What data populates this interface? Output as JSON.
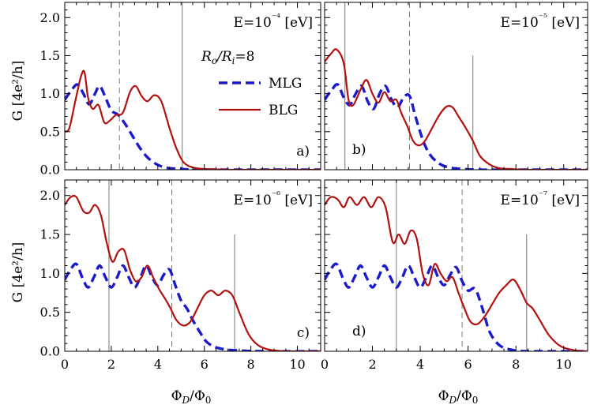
{
  "figure": {
    "ylabel_top": "G [4e²/h]",
    "ylabel_bottom": "G [4e²/h]",
    "xlabel_left": "Φ_D/Φ_0",
    "xlabel_right": "Φ_D/Φ_0",
    "ratio_label": "R_o/R_i=8",
    "colors": {
      "MLG": "#1a1acc",
      "BLG": "#b31010",
      "vline": "#777777",
      "axis": "#000000"
    }
  },
  "chart_data": [
    {
      "type": "line",
      "panel": "a)",
      "energy_label": "E=10⁻⁴ [eV]",
      "xlim": [
        0,
        11
      ],
      "ylim": [
        0,
        2.2
      ],
      "xticks": [
        "0",
        "2",
        "4",
        "6",
        "8",
        "10"
      ],
      "yticks": [
        "0.0",
        "0.5",
        "1.0",
        "1.5",
        "2.0"
      ],
      "legend": [
        "MLG",
        "BLG"
      ],
      "vlines": {
        "dashed": [
          2.35
        ],
        "solid": [
          5.05
        ]
      },
      "series": [
        {
          "name": "MLG",
          "x": [
            0.0,
            0.3,
            0.55,
            0.8,
            1.05,
            1.3,
            1.5,
            1.75,
            2.0,
            2.3,
            2.6,
            2.9,
            3.2,
            3.5,
            3.8,
            4.1,
            4.5,
            5.0,
            5.5,
            6.5,
            8.0,
            11.0
          ],
          "y": [
            0.92,
            1.05,
            1.12,
            1.0,
            0.86,
            1.0,
            1.1,
            0.95,
            0.78,
            0.72,
            0.6,
            0.45,
            0.3,
            0.18,
            0.1,
            0.05,
            0.02,
            0.01,
            0.0,
            0.0,
            0.0,
            0.0
          ]
        },
        {
          "name": "BLG",
          "x": [
            0.0,
            0.2,
            0.45,
            0.7,
            0.85,
            1.0,
            1.2,
            1.45,
            1.7,
            1.95,
            2.2,
            2.5,
            2.8,
            3.05,
            3.3,
            3.55,
            3.85,
            4.15,
            4.5,
            4.8,
            5.1,
            5.5,
            6.0,
            7.0,
            8.0,
            11.0
          ],
          "y": [
            0.5,
            0.55,
            0.9,
            1.23,
            1.28,
            0.95,
            0.8,
            0.85,
            0.62,
            0.65,
            0.72,
            0.75,
            1.02,
            1.1,
            0.97,
            0.9,
            0.98,
            0.9,
            0.55,
            0.28,
            0.1,
            0.03,
            0.01,
            0.0,
            0.0,
            0.0
          ]
        }
      ]
    },
    {
      "type": "line",
      "panel": "b)",
      "energy_label": "E=10⁻⁵ [eV]",
      "xlim": [
        0,
        11
      ],
      "ylim": [
        0,
        2.2
      ],
      "xticks": [
        "0",
        "2",
        "4",
        "6",
        "8",
        "10"
      ],
      "yticks": [],
      "vlines": {
        "solid": [
          0.85
        ],
        "dashed": [
          3.55
        ],
        "short": [
          {
            "x": 6.2,
            "top": 1.5
          }
        ]
      },
      "series": [
        {
          "name": "MLG",
          "x": [
            0.0,
            0.3,
            0.55,
            0.8,
            1.05,
            1.3,
            1.55,
            1.8,
            2.05,
            2.3,
            2.55,
            2.8,
            3.05,
            3.3,
            3.55,
            3.8,
            4.1,
            4.4,
            4.8,
            5.2,
            5.7,
            6.5,
            8.0,
            11.0
          ],
          "y": [
            0.92,
            1.05,
            1.12,
            0.95,
            0.85,
            1.0,
            1.1,
            0.9,
            0.8,
            1.0,
            1.1,
            0.92,
            0.82,
            0.95,
            0.97,
            0.7,
            0.4,
            0.2,
            0.08,
            0.03,
            0.01,
            0.0,
            0.0,
            0.0
          ]
        },
        {
          "name": "BLG",
          "x": [
            0.0,
            0.25,
            0.5,
            0.8,
            1.0,
            1.2,
            1.5,
            1.75,
            2.0,
            2.25,
            2.5,
            2.75,
            3.0,
            3.2,
            3.45,
            3.7,
            3.95,
            4.2,
            4.5,
            4.8,
            5.1,
            5.35,
            5.6,
            5.9,
            6.2,
            6.5,
            6.9,
            7.3,
            7.8,
            8.5,
            11.0
          ],
          "y": [
            1.42,
            1.52,
            1.58,
            1.4,
            0.92,
            0.85,
            1.05,
            1.18,
            1.0,
            0.88,
            1.02,
            0.9,
            0.92,
            0.75,
            0.58,
            0.38,
            0.32,
            0.38,
            0.55,
            0.72,
            0.83,
            0.82,
            0.7,
            0.55,
            0.38,
            0.18,
            0.07,
            0.02,
            0.01,
            0.0,
            0.0
          ]
        }
      ]
    },
    {
      "type": "line",
      "panel": "c)",
      "energy_label": "E=10⁻⁶ [eV]",
      "xlim": [
        0,
        11
      ],
      "ylim": [
        0,
        2.2
      ],
      "xticks": [
        "0",
        "2",
        "4",
        "6",
        "8",
        "10"
      ],
      "yticks": [
        "0.0",
        "0.5",
        "1.0",
        "1.5",
        "2.0"
      ],
      "vlines": {
        "solid": [
          1.9
        ],
        "dashed": [
          4.6
        ],
        "short": [
          {
            "x": 7.3,
            "top": 1.5
          }
        ]
      },
      "series": [
        {
          "name": "MLG",
          "x": [
            0.0,
            0.25,
            0.5,
            0.75,
            1.0,
            1.25,
            1.5,
            1.75,
            2.0,
            2.25,
            2.5,
            2.75,
            3.0,
            3.25,
            3.5,
            3.75,
            4.0,
            4.25,
            4.5,
            4.75,
            5.0,
            5.25,
            5.5,
            5.8,
            6.1,
            6.5,
            7.0,
            7.5,
            8.5,
            11.0
          ],
          "y": [
            0.92,
            1.05,
            1.12,
            0.95,
            0.82,
            0.95,
            1.1,
            0.95,
            0.82,
            0.95,
            1.1,
            0.95,
            0.82,
            0.95,
            1.1,
            0.95,
            0.85,
            0.98,
            1.05,
            0.85,
            0.65,
            0.55,
            0.4,
            0.25,
            0.12,
            0.05,
            0.02,
            0.01,
            0.0,
            0.0
          ]
        },
        {
          "name": "BLG",
          "x": [
            0.0,
            0.25,
            0.5,
            0.8,
            1.05,
            1.3,
            1.55,
            1.8,
            2.05,
            2.3,
            2.55,
            2.8,
            3.05,
            3.3,
            3.55,
            3.8,
            4.05,
            4.3,
            4.55,
            4.8,
            5.1,
            5.4,
            5.7,
            6.0,
            6.3,
            6.6,
            6.9,
            7.2,
            7.5,
            7.9,
            8.3,
            8.8,
            9.5,
            11.0
          ],
          "y": [
            1.88,
            1.98,
            1.98,
            1.8,
            1.78,
            1.88,
            1.75,
            1.4,
            1.15,
            1.28,
            1.3,
            1.05,
            0.9,
            0.95,
            1.1,
            0.95,
            0.8,
            0.68,
            0.55,
            0.4,
            0.33,
            0.38,
            0.55,
            0.72,
            0.78,
            0.72,
            0.78,
            0.72,
            0.5,
            0.22,
            0.08,
            0.02,
            0.0,
            0.0
          ]
        }
      ]
    },
    {
      "type": "line",
      "panel": "d)",
      "energy_label": "E=10⁻⁷ [eV]",
      "xlim": [
        0,
        11
      ],
      "ylim": [
        0,
        2.2
      ],
      "xticks": [
        "0",
        "2",
        "4",
        "6",
        "8",
        "10"
      ],
      "yticks": [],
      "vlines": {
        "solid": [
          3.0
        ],
        "dashed": [
          5.75
        ],
        "short": [
          {
            "x": 8.45,
            "top": 1.5
          }
        ]
      },
      "series": [
        {
          "name": "MLG",
          "x": [
            0.0,
            0.25,
            0.5,
            0.75,
            1.0,
            1.25,
            1.5,
            1.75,
            2.0,
            2.25,
            2.5,
            2.75,
            3.0,
            3.25,
            3.5,
            3.75,
            4.0,
            4.25,
            4.5,
            4.75,
            5.0,
            5.25,
            5.5,
            5.75,
            6.0,
            6.3,
            6.6,
            6.9,
            7.3,
            7.8,
            8.5,
            11.0
          ],
          "y": [
            0.92,
            1.05,
            1.12,
            0.95,
            0.82,
            0.95,
            1.1,
            0.95,
            0.82,
            0.95,
            1.1,
            0.95,
            0.82,
            0.95,
            1.1,
            0.95,
            0.82,
            0.95,
            1.1,
            0.95,
            0.85,
            0.98,
            1.08,
            0.9,
            0.78,
            0.8,
            0.55,
            0.25,
            0.08,
            0.02,
            0.0,
            0.0
          ]
        },
        {
          "name": "BLG",
          "x": [
            0.0,
            0.25,
            0.55,
            0.8,
            1.05,
            1.35,
            1.65,
            1.95,
            2.25,
            2.55,
            2.85,
            3.1,
            3.35,
            3.6,
            3.85,
            4.1,
            4.35,
            4.6,
            4.85,
            5.1,
            5.35,
            5.6,
            5.85,
            6.1,
            6.4,
            6.7,
            7.0,
            7.3,
            7.6,
            7.9,
            8.2,
            8.45,
            8.7,
            9.0,
            9.4,
            9.9,
            10.5,
            11.0
          ],
          "y": [
            1.88,
            1.98,
            1.95,
            1.85,
            1.98,
            1.88,
            1.98,
            1.85,
            1.98,
            1.85,
            1.4,
            1.5,
            1.38,
            1.55,
            1.45,
            1.0,
            0.85,
            1.12,
            1.0,
            0.9,
            0.95,
            0.75,
            0.55,
            0.38,
            0.35,
            0.45,
            0.6,
            0.75,
            0.85,
            0.92,
            0.78,
            0.62,
            0.55,
            0.4,
            0.2,
            0.06,
            0.01,
            0.0
          ]
        }
      ]
    }
  ]
}
